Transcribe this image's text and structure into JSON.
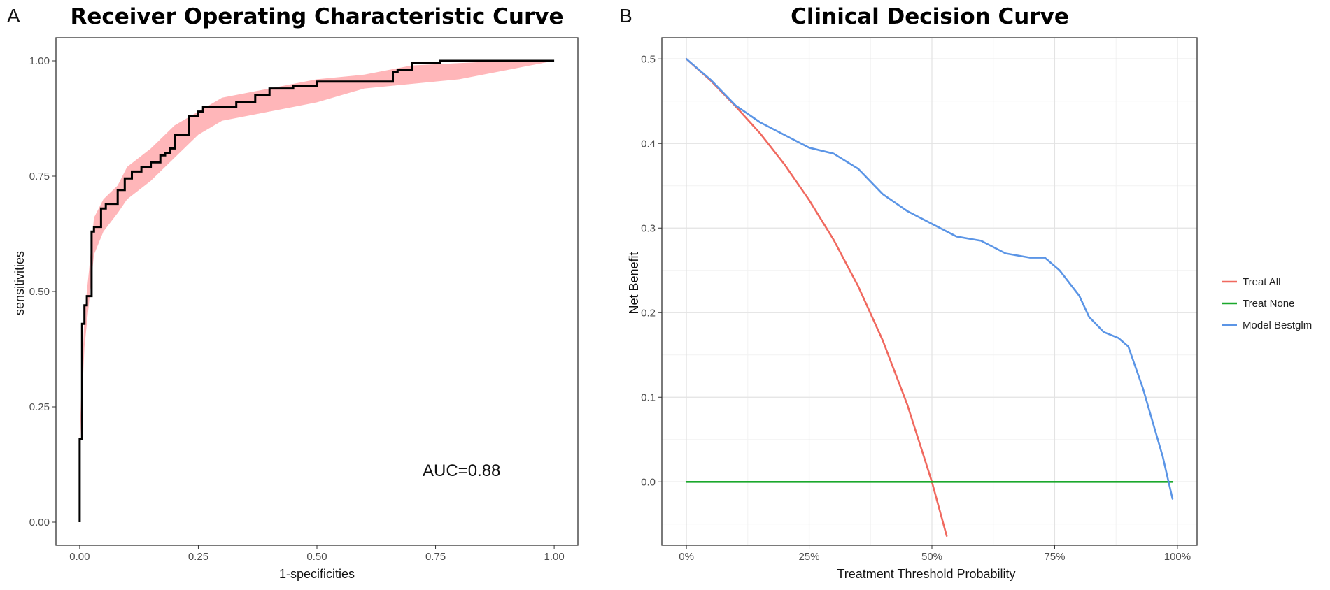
{
  "chart_data": [
    {
      "panel_label": "A",
      "type": "line",
      "title": "Receiver Operating Characteristic Curve",
      "xlabel": "1-specificities",
      "ylabel": "sensitivities",
      "xlim": [
        -0.05,
        1.05
      ],
      "ylim": [
        -0.05,
        1.05
      ],
      "xticks": [
        0,
        0.25,
        0.5,
        0.75,
        1
      ],
      "xtick_labels": [
        "0.00",
        "0.25",
        "0.50",
        "0.75",
        "1.00"
      ],
      "yticks": [
        0,
        0.25,
        0.5,
        0.75,
        1
      ],
      "ytick_labels": [
        "0.00",
        "0.25",
        "0.50",
        "0.75",
        "1.00"
      ],
      "grid": false,
      "annotation": "AUC=0.88",
      "colors": {
        "curve": "#000000",
        "band": "#ffb6b9"
      },
      "series": [
        {
          "name": "ROC",
          "step": true,
          "x": [
            0,
            0,
            0.005,
            0.005,
            0.01,
            0.01,
            0.015,
            0.015,
            0.025,
            0.025,
            0.03,
            0.03,
            0.045,
            0.045,
            0.055,
            0.055,
            0.08,
            0.08,
            0.095,
            0.095,
            0.11,
            0.11,
            0.13,
            0.13,
            0.15,
            0.15,
            0.17,
            0.17,
            0.18,
            0.18,
            0.19,
            0.19,
            0.2,
            0.2,
            0.23,
            0.23,
            0.25,
            0.25,
            0.26,
            0.26,
            0.33,
            0.33,
            0.37,
            0.37,
            0.4,
            0.4,
            0.45,
            0.45,
            0.5,
            0.5,
            0.66,
            0.66,
            0.67,
            0.67,
            0.7,
            0.7,
            0.76,
            0.76,
            0.94,
            0.94,
            1.0
          ],
          "y": [
            0,
            0.18,
            0.18,
            0.43,
            0.43,
            0.47,
            0.47,
            0.49,
            0.49,
            0.63,
            0.63,
            0.64,
            0.64,
            0.68,
            0.68,
            0.69,
            0.69,
            0.72,
            0.72,
            0.745,
            0.745,
            0.76,
            0.76,
            0.77,
            0.77,
            0.78,
            0.78,
            0.795,
            0.795,
            0.8,
            0.8,
            0.81,
            0.81,
            0.84,
            0.84,
            0.88,
            0.88,
            0.89,
            0.89,
            0.9,
            0.9,
            0.91,
            0.91,
            0.925,
            0.925,
            0.94,
            0.94,
            0.945,
            0.945,
            0.955,
            0.955,
            0.975,
            0.975,
            0.98,
            0.98,
            0.995,
            0.995,
            1.0,
            1.0,
            1.0,
            1.0
          ]
        }
      ],
      "band": {
        "x": [
          0,
          0.01,
          0.02,
          0.03,
          0.05,
          0.08,
          0.1,
          0.15,
          0.2,
          0.25,
          0.3,
          0.4,
          0.5,
          0.6,
          0.7,
          0.8,
          0.9,
          1.0
        ],
        "lower": [
          0.15,
          0.38,
          0.48,
          0.58,
          0.63,
          0.67,
          0.7,
          0.74,
          0.79,
          0.84,
          0.87,
          0.89,
          0.91,
          0.94,
          0.95,
          0.96,
          0.98,
          1.0
        ],
        "upper": [
          0.19,
          0.45,
          0.55,
          0.66,
          0.7,
          0.73,
          0.77,
          0.81,
          0.86,
          0.89,
          0.92,
          0.94,
          0.96,
          0.97,
          0.99,
          0.995,
          1.0,
          1.0
        ]
      }
    },
    {
      "panel_label": "B",
      "type": "line",
      "title": "Clinical Decision Curve",
      "xlabel": "Treatment Threshold Probability",
      "ylabel": "Net Benefit",
      "xlim": [
        -0.05,
        1.04
      ],
      "ylim": [
        -0.075,
        0.525
      ],
      "xticks": [
        0,
        0.25,
        0.5,
        0.75,
        1
      ],
      "xtick_labels": [
        "0%",
        "25%",
        "50%",
        "75%",
        "100%"
      ],
      "yticks": [
        0,
        0.1,
        0.2,
        0.3,
        0.4,
        0.5
      ],
      "ytick_labels": [
        "0.0",
        "0.1",
        "0.2",
        "0.3",
        "0.4",
        "0.5"
      ],
      "grid": true,
      "legend_position": "right",
      "series": [
        {
          "name": "Treat All",
          "color": "#f0695f",
          "x": [
            0,
            0.05,
            0.1,
            0.15,
            0.2,
            0.25,
            0.3,
            0.35,
            0.4,
            0.45,
            0.5,
            0.53
          ],
          "y": [
            0.5,
            0.474,
            0.444,
            0.412,
            0.375,
            0.333,
            0.286,
            0.231,
            0.167,
            0.091,
            0.0,
            -0.064
          ]
        },
        {
          "name": "Treat None",
          "color": "#1aa82c",
          "x": [
            0,
            0.99
          ],
          "y": [
            0,
            0
          ]
        },
        {
          "name": "Model Bestglm",
          "color": "#5b95e6",
          "x": [
            0,
            0.05,
            0.1,
            0.15,
            0.2,
            0.25,
            0.3,
            0.35,
            0.4,
            0.45,
            0.5,
            0.55,
            0.6,
            0.65,
            0.7,
            0.73,
            0.76,
            0.8,
            0.82,
            0.85,
            0.88,
            0.9,
            0.93,
            0.95,
            0.97,
            0.99
          ],
          "y": [
            0.5,
            0.475,
            0.445,
            0.425,
            0.41,
            0.395,
            0.388,
            0.37,
            0.34,
            0.32,
            0.305,
            0.29,
            0.285,
            0.27,
            0.265,
            0.265,
            0.25,
            0.22,
            0.195,
            0.177,
            0.17,
            0.16,
            0.11,
            0.07,
            0.03,
            -0.02
          ]
        }
      ]
    }
  ]
}
